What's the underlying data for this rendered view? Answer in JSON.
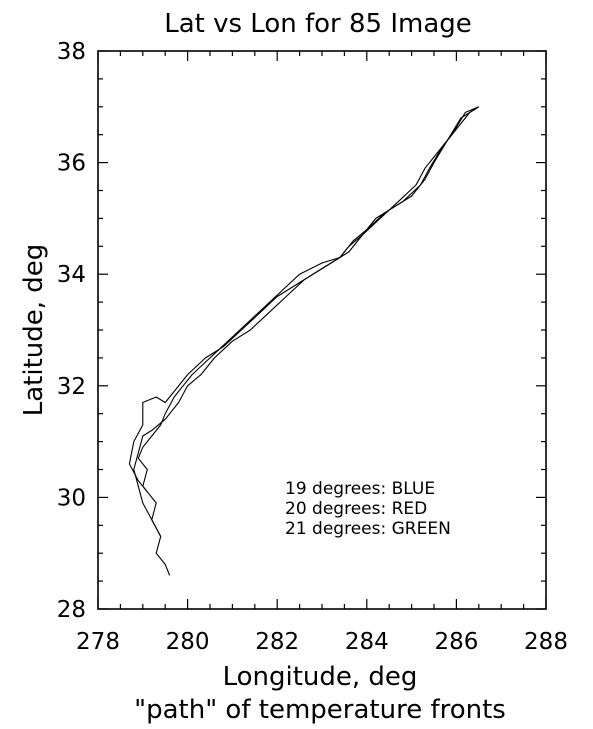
{
  "chart_data": {
    "type": "line",
    "title": "Lat vs Lon for 85 Image",
    "xlabel": "Longitude, deg",
    "ylabel": "Latitude, deg",
    "caption": "\"path\" of temperature fronts",
    "xlim": [
      278,
      288
    ],
    "ylim": [
      28,
      38
    ],
    "xticks": [
      "278",
      "280",
      "282",
      "284",
      "286",
      "288"
    ],
    "yticks": [
      "28",
      "30",
      "32",
      "34",
      "36",
      "38"
    ],
    "grid": false,
    "legend_position": "lower-right",
    "legend": [
      "19 degrees: BLUE",
      "20 degrees: RED",
      "21 degrees: GREEN"
    ],
    "series": [
      {
        "name": "19 degrees: BLUE",
        "x": [
          279.6,
          279.5,
          279.3,
          279.4,
          279.2,
          279.3,
          279.0,
          279.1,
          278.9,
          279.0,
          279.2,
          279.4,
          279.5,
          279.7,
          279.9,
          280.1,
          280.5,
          280.9,
          281.3,
          281.7,
          282.1,
          282.5,
          283.0,
          283.4,
          283.6,
          283.9,
          284.2,
          284.6,
          285.0,
          285.3,
          285.5,
          285.8,
          286.1,
          286.5
        ],
        "y": [
          28.6,
          28.8,
          29.0,
          29.3,
          29.6,
          29.9,
          30.2,
          30.5,
          30.7,
          30.9,
          31.1,
          31.3,
          31.5,
          31.8,
          32.0,
          32.2,
          32.5,
          32.8,
          33.1,
          33.4,
          33.7,
          34.0,
          34.2,
          34.3,
          34.5,
          34.7,
          35.0,
          35.2,
          35.4,
          35.7,
          36.0,
          36.4,
          36.8,
          37.0
        ]
      },
      {
        "name": "20 degrees: RED",
        "x": [
          279.4,
          279.2,
          279.0,
          278.9,
          278.8,
          278.9,
          279.0,
          279.2,
          279.5,
          279.8,
          280.0,
          280.3,
          280.6,
          281.0,
          281.4,
          281.8,
          282.2,
          282.6,
          283.0,
          283.4,
          283.7,
          284.0,
          284.4,
          284.8,
          285.2,
          285.4,
          285.7,
          286.0,
          286.3,
          286.5
        ],
        "y": [
          29.3,
          29.6,
          29.9,
          30.2,
          30.5,
          30.8,
          31.1,
          31.2,
          31.4,
          31.7,
          32.0,
          32.2,
          32.5,
          32.8,
          33.0,
          33.3,
          33.6,
          33.9,
          34.1,
          34.3,
          34.6,
          34.8,
          35.1,
          35.3,
          35.6,
          35.9,
          36.3,
          36.6,
          36.9,
          37.0
        ]
      },
      {
        "name": "21 degrees: GREEN",
        "x": [
          279.1,
          278.9,
          278.7,
          278.8,
          279.0,
          279.0,
          279.3,
          279.5,
          279.7,
          280.0,
          280.4,
          280.8,
          281.2,
          281.6,
          282.0,
          282.4,
          282.8,
          283.2,
          283.6,
          283.9,
          284.3,
          284.7,
          285.1,
          285.3,
          285.6,
          285.9,
          286.2,
          286.5
        ],
        "y": [
          30.1,
          30.3,
          30.6,
          31.0,
          31.3,
          31.7,
          31.8,
          31.7,
          31.9,
          32.2,
          32.5,
          32.7,
          33.0,
          33.3,
          33.6,
          33.8,
          34.0,
          34.2,
          34.4,
          34.7,
          35.0,
          35.3,
          35.6,
          35.9,
          36.2,
          36.5,
          36.9,
          37.0
        ]
      }
    ]
  }
}
